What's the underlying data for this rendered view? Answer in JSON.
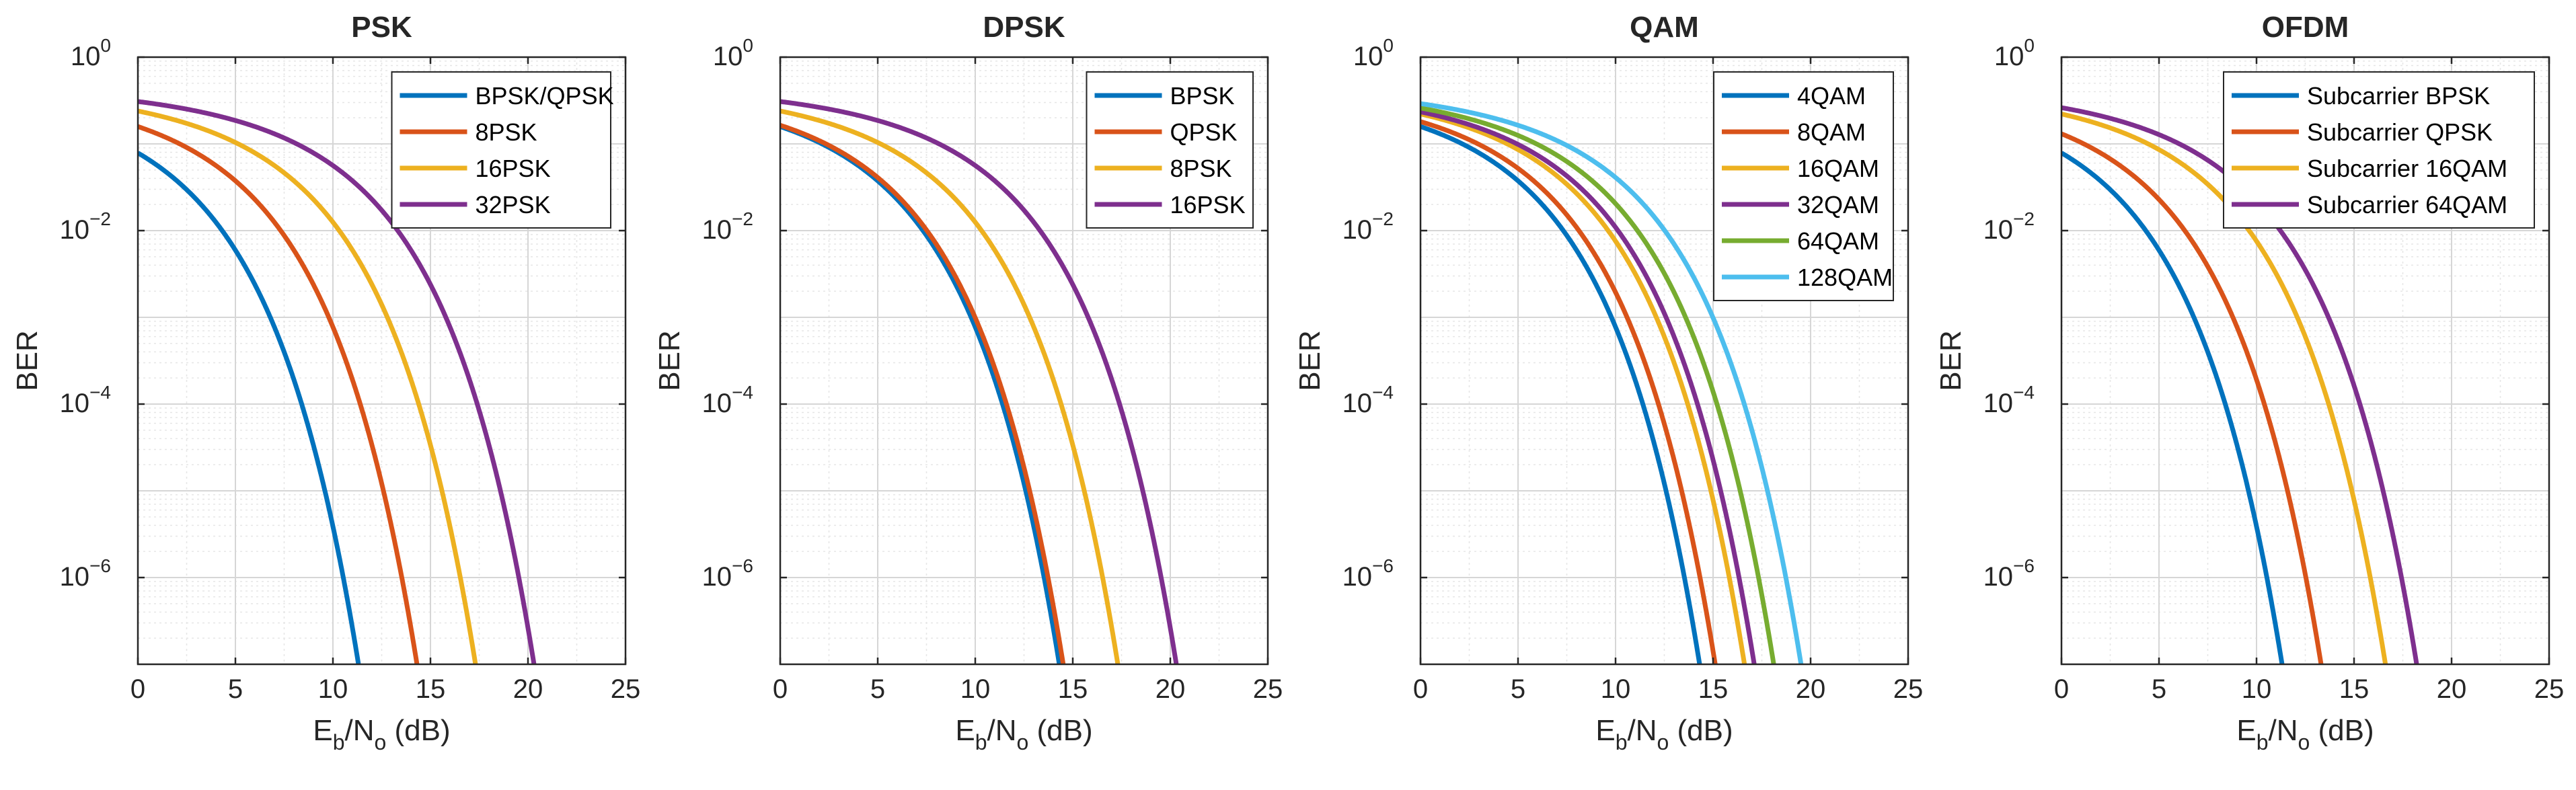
{
  "chart_data": [
    {
      "type": "line",
      "title": "PSK",
      "xlabel": "E_b/N_o (dB)",
      "ylabel": "BER",
      "xlim": [
        0,
        25
      ],
      "ylim": [
        1e-07,
        1
      ],
      "yscale": "log",
      "grid": true,
      "legend_location": "top-right",
      "xticks": [
        0,
        5,
        10,
        15,
        20,
        25
      ],
      "yticks": [
        1e-06,
        0.0001,
        0.01,
        1
      ],
      "series": [
        {
          "name": "BPSK/QPSK",
          "color": "#0072BD",
          "offset_db": 0
        },
        {
          "name": "8PSK",
          "color": "#D95319",
          "offset_db": 3
        },
        {
          "name": "16PSK",
          "color": "#EDB120",
          "offset_db": 6
        },
        {
          "name": "32PSK",
          "color": "#7E2F8E",
          "offset_db": 9
        }
      ]
    },
    {
      "type": "line",
      "title": "DPSK",
      "xlabel": "E_b/N_o (dB)",
      "ylabel": "BER",
      "xlim": [
        0,
        25
      ],
      "ylim": [
        1e-07,
        1
      ],
      "yscale": "log",
      "grid": true,
      "legend_location": "top-right",
      "xticks": [
        0,
        5,
        10,
        15,
        20,
        25
      ],
      "yticks": [
        1e-06,
        0.0001,
        0.01,
        1
      ],
      "series": [
        {
          "name": "BPSK",
          "color": "#0072BD",
          "offset_db": 3
        },
        {
          "name": "QPSK",
          "color": "#D95319",
          "offset_db": 3.2
        },
        {
          "name": "8PSK",
          "color": "#EDB120",
          "offset_db": 6
        },
        {
          "name": "16PSK",
          "color": "#7E2F8E",
          "offset_db": 9
        }
      ]
    },
    {
      "type": "line",
      "title": "QAM",
      "xlabel": "E_b/N_o (dB)",
      "ylabel": "BER",
      "xlim": [
        0,
        25
      ],
      "ylim": [
        1e-07,
        1
      ],
      "yscale": "log",
      "grid": true,
      "legend_location": "top-right",
      "xticks": [
        0,
        5,
        10,
        15,
        20,
        25
      ],
      "yticks": [
        1e-06,
        0.0001,
        0.01,
        1
      ],
      "series": [
        {
          "name": "4QAM",
          "color": "#0072BD",
          "offset_db": 3
        },
        {
          "name": "8QAM",
          "color": "#D95319",
          "offset_db": 3.8
        },
        {
          "name": "16QAM",
          "color": "#EDB120",
          "offset_db": 5.3
        },
        {
          "name": "32QAM",
          "color": "#7E2F8E",
          "offset_db": 5.8
        },
        {
          "name": "64QAM",
          "color": "#77AC30",
          "offset_db": 6.8
        },
        {
          "name": "128QAM",
          "color": "#4DBEEE",
          "offset_db": 8.2
        }
      ]
    },
    {
      "type": "line",
      "title": "OFDM",
      "xlabel": "E_b/N_o (dB)",
      "ylabel": "BER",
      "xlim": [
        0,
        25
      ],
      "ylim": [
        1e-07,
        1
      ],
      "yscale": "log",
      "grid": true,
      "legend_location": "top-right",
      "xticks": [
        0,
        5,
        10,
        15,
        20,
        25
      ],
      "yticks": [
        1e-06,
        0.0001,
        0.01,
        1
      ],
      "series": [
        {
          "name": "Subcarrier BPSK",
          "color": "#0072BD",
          "offset_db": 0
        },
        {
          "name": "Subcarrier QPSK",
          "color": "#D95319",
          "offset_db": 2
        },
        {
          "name": "Subcarrier 16QAM",
          "color": "#EDB120",
          "offset_db": 5.3
        },
        {
          "name": "Subcarrier 64QAM",
          "color": "#7E2F8E",
          "offset_db": 6.9
        }
      ]
    }
  ]
}
